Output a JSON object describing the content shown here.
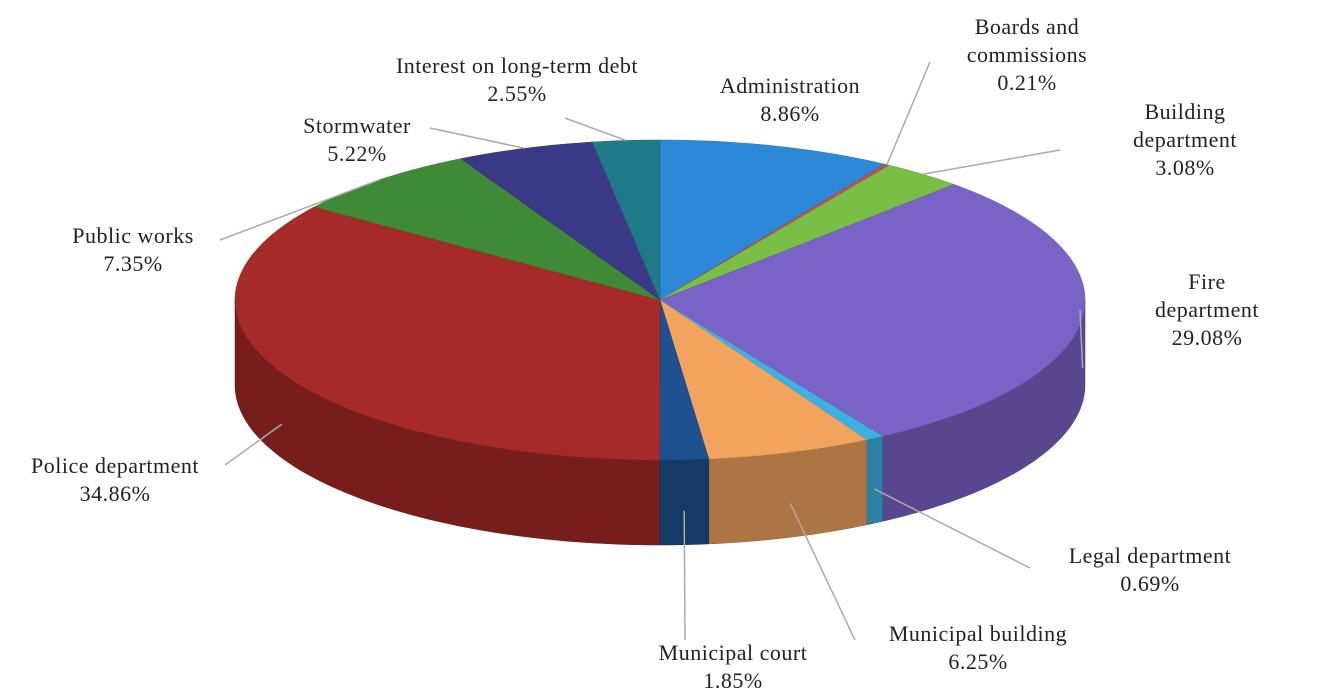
{
  "chart_data": {
    "type": "pie",
    "categories": [
      "Administration",
      "Boards and commissions",
      "Building department",
      "Fire department",
      "Legal department",
      "Municipal building",
      "Municipal court",
      "Police department",
      "Public works",
      "Stormwater",
      "Interest on long-term debt"
    ],
    "values": [
      8.86,
      0.21,
      3.08,
      29.08,
      0.69,
      6.25,
      1.85,
      34.86,
      7.35,
      5.22,
      2.55
    ],
    "value_labels": [
      "8.86%",
      "0.21%",
      "3.08%",
      "29.08%",
      "0.69%",
      "6.25%",
      "1.85%",
      "34.86%",
      "7.35%",
      "5.22%",
      "2.55%"
    ],
    "colors": [
      "#2d88d9",
      "#c0504d",
      "#79be45",
      "#7a63c6",
      "#3cb2e3",
      "#f2a35e",
      "#1e508f",
      "#a52a28",
      "#3e8a36",
      "#3b3987",
      "#1f7a88"
    ]
  }
}
